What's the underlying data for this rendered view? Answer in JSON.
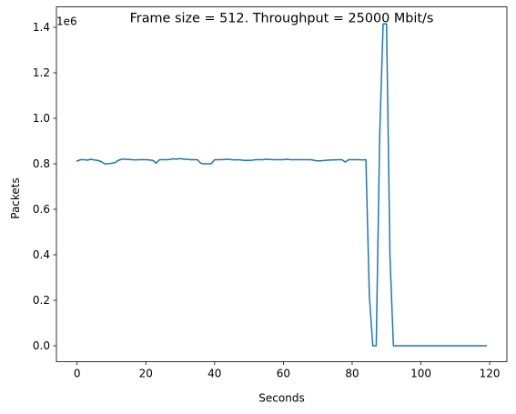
{
  "chart_data": {
    "type": "line",
    "title": "Frame size = 512. Throughput = 25000 Mbit/s",
    "xlabel": "Seconds",
    "ylabel": "Packets",
    "offset_label": "1e6",
    "xlim": [
      -6,
      125
    ],
    "ylim": [
      -0.07,
      1.49
    ],
    "xticks": [
      0,
      20,
      40,
      60,
      80,
      100,
      120
    ],
    "xtick_labels": [
      "0",
      "20",
      "40",
      "60",
      "80",
      "100",
      "120"
    ],
    "yticks": [
      0.0,
      0.2,
      0.4,
      0.6,
      0.8,
      1.0,
      1.2,
      1.4
    ],
    "ytick_labels": [
      "0.0",
      "0.2",
      "0.4",
      "0.6",
      "0.8",
      "1.0",
      "1.2",
      "1.4"
    ],
    "grid": false,
    "series": [
      {
        "color": "#1f77b4",
        "x": [
          0,
          1,
          2,
          3,
          4,
          5,
          6,
          7,
          8,
          9,
          10,
          11,
          12,
          13,
          14,
          15,
          16,
          17,
          18,
          19,
          20,
          21,
          22,
          23,
          24,
          25,
          26,
          27,
          28,
          29,
          30,
          31,
          32,
          33,
          34,
          35,
          36,
          37,
          38,
          39,
          40,
          41,
          42,
          43,
          44,
          45,
          46,
          47,
          48,
          49,
          50,
          51,
          52,
          53,
          54,
          55,
          56,
          57,
          58,
          59,
          60,
          61,
          62,
          63,
          64,
          65,
          66,
          67,
          68,
          69,
          70,
          71,
          72,
          73,
          74,
          75,
          76,
          77,
          78,
          79,
          80,
          81,
          82,
          83,
          84,
          85,
          86,
          87,
          88,
          89,
          90,
          91,
          92,
          93,
          94,
          95,
          96,
          97,
          98,
          99,
          100,
          101,
          102,
          103,
          104,
          105,
          106,
          107,
          108,
          109,
          110,
          111,
          112,
          113,
          114,
          115,
          116,
          117,
          118,
          119
        ],
        "y": [
          0.812,
          0.818,
          0.818,
          0.816,
          0.82,
          0.817,
          0.815,
          0.81,
          0.8,
          0.8,
          0.802,
          0.805,
          0.815,
          0.82,
          0.82,
          0.819,
          0.818,
          0.817,
          0.818,
          0.818,
          0.818,
          0.817,
          0.815,
          0.803,
          0.818,
          0.818,
          0.818,
          0.819,
          0.822,
          0.82,
          0.823,
          0.82,
          0.82,
          0.818,
          0.818,
          0.818,
          0.802,
          0.8,
          0.8,
          0.8,
          0.818,
          0.818,
          0.818,
          0.819,
          0.82,
          0.818,
          0.817,
          0.818,
          0.816,
          0.815,
          0.815,
          0.816,
          0.818,
          0.818,
          0.818,
          0.82,
          0.819,
          0.818,
          0.818,
          0.818,
          0.818,
          0.82,
          0.818,
          0.818,
          0.818,
          0.818,
          0.818,
          0.818,
          0.818,
          0.815,
          0.813,
          0.813,
          0.815,
          0.816,
          0.817,
          0.817,
          0.818,
          0.818,
          0.808,
          0.818,
          0.818,
          0.818,
          0.818,
          0.817,
          0.818,
          0.22,
          0.0,
          0.0,
          0.92,
          1.415,
          1.415,
          0.39,
          0.0,
          0.0,
          0.0,
          0.0,
          0.0,
          0.0,
          0.0,
          0.0,
          0.0,
          0.0,
          0.0,
          0.0,
          0.0,
          0.0,
          0.0,
          0.0,
          0.0,
          0.0,
          0.0,
          0.0,
          0.0,
          0.0,
          0.0,
          0.0,
          0.0,
          0.0,
          0.0,
          0.0
        ]
      }
    ]
  }
}
